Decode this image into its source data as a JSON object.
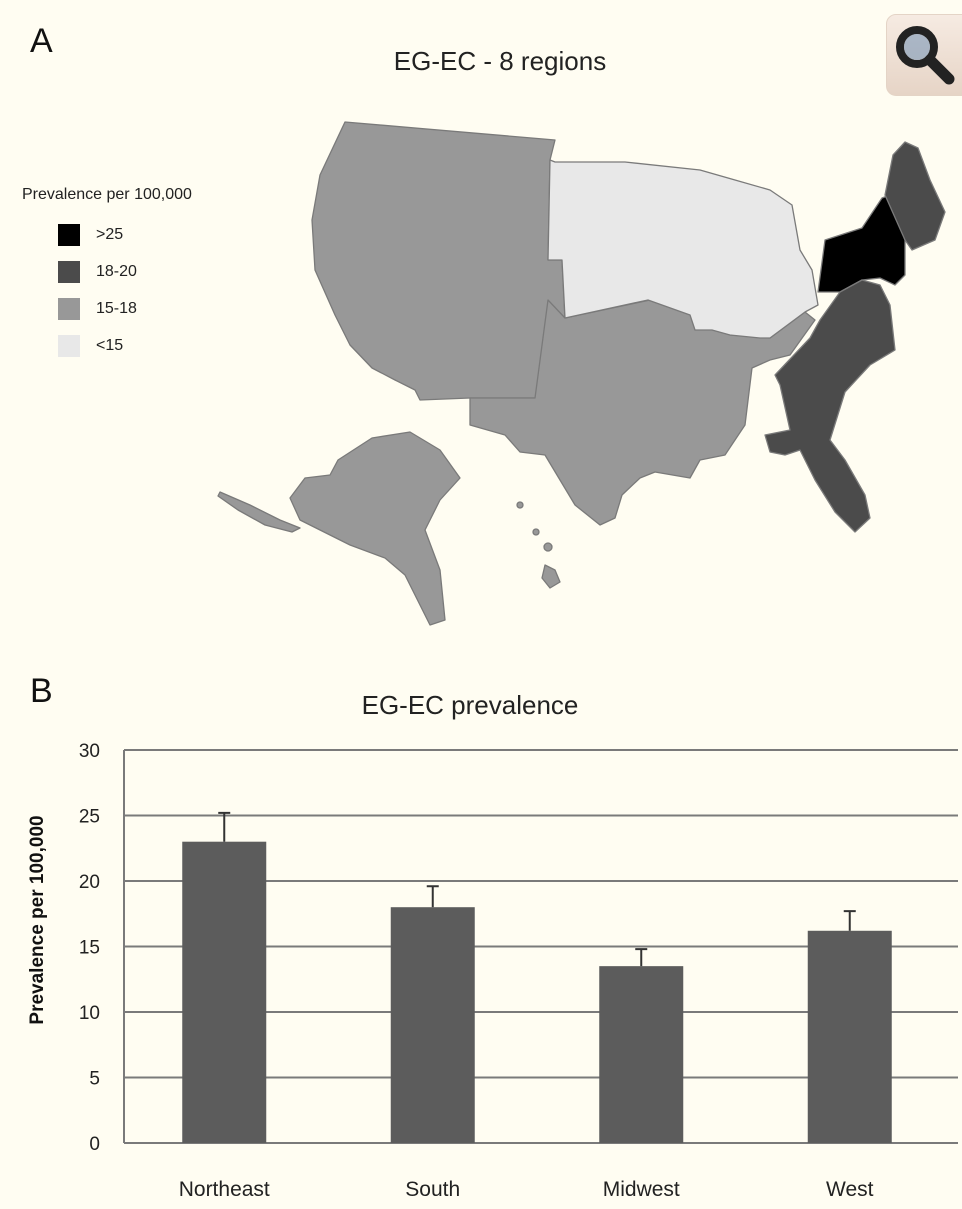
{
  "panel_a": {
    "letter": "A",
    "title": "EG-EC - 8 regions",
    "legend": {
      "title": "Prevalence per 100,000",
      "items": [
        {
          "label": ">25",
          "color": "#000000"
        },
        {
          "label": "18-20",
          "color": "#4b4b4b"
        },
        {
          "label": "15-18",
          "color": "#989898"
        },
        {
          "label": "<15",
          "color": "#e8e8e8"
        }
      ]
    }
  },
  "panel_b": {
    "letter": "B",
    "ylabel": "Prevalence per 100,000"
  },
  "zoom": {
    "icon": "magnifier-icon"
  },
  "chart_data": {
    "type": "bar",
    "title": "EG-EC prevalence",
    "categories": [
      "Northeast",
      "South",
      "Midwest",
      "West"
    ],
    "values": [
      23,
      18,
      13.5,
      16.2
    ],
    "error_upper": [
      25.2,
      19.6,
      14.8,
      17.7
    ],
    "ylabel": "Prevalence per 100,000",
    "ylim": [
      0,
      30
    ],
    "yticks": [
      0,
      5,
      10,
      15,
      20,
      25,
      30
    ],
    "grid": true,
    "bar_color": "#5c5c5c"
  }
}
